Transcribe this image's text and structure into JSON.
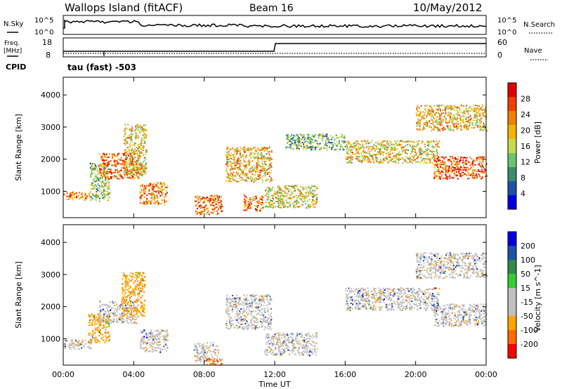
{
  "header": {
    "station": "Wallops Island (fitACF)",
    "beam": "Beam 16",
    "date": "10/May/2012"
  },
  "noise_panel": {
    "left_label": "N.Sky",
    "right_label": "N.Search",
    "tick_top": "10^5",
    "tick_bottom": "10^0"
  },
  "freq_panel": {
    "left_label_line1": "Freq.",
    "left_label_line2": "[MHz]",
    "left_ticks": [
      "18",
      "8"
    ],
    "right_label": "Nave",
    "right_ticks": [
      "60",
      "0"
    ],
    "cpid_label": "CPID",
    "cpid_text": "tau (fast) -503"
  },
  "colors": {
    "power": [
      "#0000e0",
      "#1f50a8",
      "#3c8c6c",
      "#6cc46c",
      "#c8d84c",
      "#f4b400",
      "#f08000",
      "#f04000",
      "#e00000"
    ],
    "velocity": [
      "#ff0000",
      "#ff6a00",
      "#ffa500",
      "#c0c0c0",
      "#c0c0c0",
      "#33cc33",
      "#33884c",
      "#1f50a8",
      "#0000e0"
    ],
    "ground_scatter": "#c0c0c0"
  },
  "chart_data": [
    {
      "type": "heatmap",
      "panel": "power",
      "ylabel": "Slant Range [km]",
      "xlabel": "Time UT",
      "x_ticks": [
        "00:00",
        "04:00",
        "08:00",
        "12:00",
        "16:00",
        "20:00",
        "00:00"
      ],
      "xlim_hours": [
        0,
        24
      ],
      "y_ticks": [
        1000,
        2000,
        3000,
        4000
      ],
      "ylim_km": [
        180,
        4550
      ],
      "colorbar": {
        "label": "Power [dB]",
        "ticks": [
          "28",
          "24",
          "20",
          "16",
          "12",
          "8",
          "4"
        ]
      },
      "bands": [
        {
          "t": [
            0,
            1.5
          ],
          "km": [
            750,
            1000
          ],
          "db": 22
        },
        {
          "t": [
            1.5,
            2.6
          ],
          "km": [
            700,
            1900
          ],
          "db": 14
        },
        {
          "t": [
            2.0,
            4.3
          ],
          "km": [
            1400,
            2200
          ],
          "db": 25
        },
        {
          "t": [
            3.4,
            4.7
          ],
          "km": [
            1500,
            3100
          ],
          "db": 18
        },
        {
          "t": [
            4.3,
            5.9
          ],
          "km": [
            600,
            1300
          ],
          "db": 22
        },
        {
          "t": [
            7.4,
            9.0
          ],
          "km": [
            300,
            900
          ],
          "db": 24
        },
        {
          "t": [
            9.2,
            11.8
          ],
          "km": [
            1300,
            2400
          ],
          "db": 20
        },
        {
          "t": [
            10.2,
            11.3
          ],
          "km": [
            400,
            900
          ],
          "db": 24
        },
        {
          "t": [
            11.4,
            14.4
          ],
          "km": [
            500,
            1200
          ],
          "db": 17
        },
        {
          "t": [
            12.6,
            16.0
          ],
          "km": [
            2300,
            2800
          ],
          "db": 12
        },
        {
          "t": [
            16.0,
            21.3
          ],
          "km": [
            1900,
            2600
          ],
          "db": 18
        },
        {
          "t": [
            21.0,
            24.0
          ],
          "km": [
            1400,
            2100
          ],
          "db": 26
        },
        {
          "t": [
            20.0,
            24.0
          ],
          "km": [
            2900,
            3700
          ],
          "db": 20
        }
      ]
    },
    {
      "type": "heatmap",
      "panel": "velocity",
      "ylabel": "Slant Range [km]",
      "xlabel": "Time UT",
      "x_ticks": [
        "00:00",
        "04:00",
        "08:00",
        "12:00",
        "16:00",
        "20:00",
        "00:00"
      ],
      "xlim_hours": [
        0,
        24
      ],
      "y_ticks": [
        1000,
        2000,
        3000,
        4000
      ],
      "ylim_km": [
        180,
        4550
      ],
      "colorbar": {
        "label": "Velocity [m s^-1]",
        "ticks": [
          "200",
          "100",
          "50",
          "15",
          "-15",
          "-50",
          "-100",
          "-200"
        ]
      },
      "bands": [
        {
          "t": [
            0,
            1.6
          ],
          "km": [
            700,
            1000
          ],
          "v": 0
        },
        {
          "t": [
            1.4,
            2.6
          ],
          "km": [
            900,
            1800
          ],
          "v": -60
        },
        {
          "t": [
            2.0,
            4.2
          ],
          "km": [
            1500,
            2200
          ],
          "v": 0
        },
        {
          "t": [
            3.3,
            4.6
          ],
          "km": [
            1700,
            3100
          ],
          "v": -70
        },
        {
          "t": [
            4.3,
            5.9
          ],
          "km": [
            600,
            1300
          ],
          "v": 0
        },
        {
          "t": [
            7.4,
            8.8
          ],
          "km": [
            300,
            900
          ],
          "v": 0
        },
        {
          "t": [
            8.0,
            9.0
          ],
          "km": [
            200,
            400
          ],
          "v": -150
        },
        {
          "t": [
            9.2,
            11.8
          ],
          "km": [
            1300,
            2400
          ],
          "v": 0
        },
        {
          "t": [
            11.4,
            14.4
          ],
          "km": [
            500,
            1200
          ],
          "v": 0
        },
        {
          "t": [
            16.0,
            21.3
          ],
          "km": [
            1900,
            2600
          ],
          "v": 0
        },
        {
          "t": [
            21.0,
            24.0
          ],
          "km": [
            1400,
            2100
          ],
          "v": 0
        },
        {
          "t": [
            20.0,
            24.0
          ],
          "km": [
            2900,
            3700
          ],
          "v": 0
        }
      ]
    }
  ]
}
